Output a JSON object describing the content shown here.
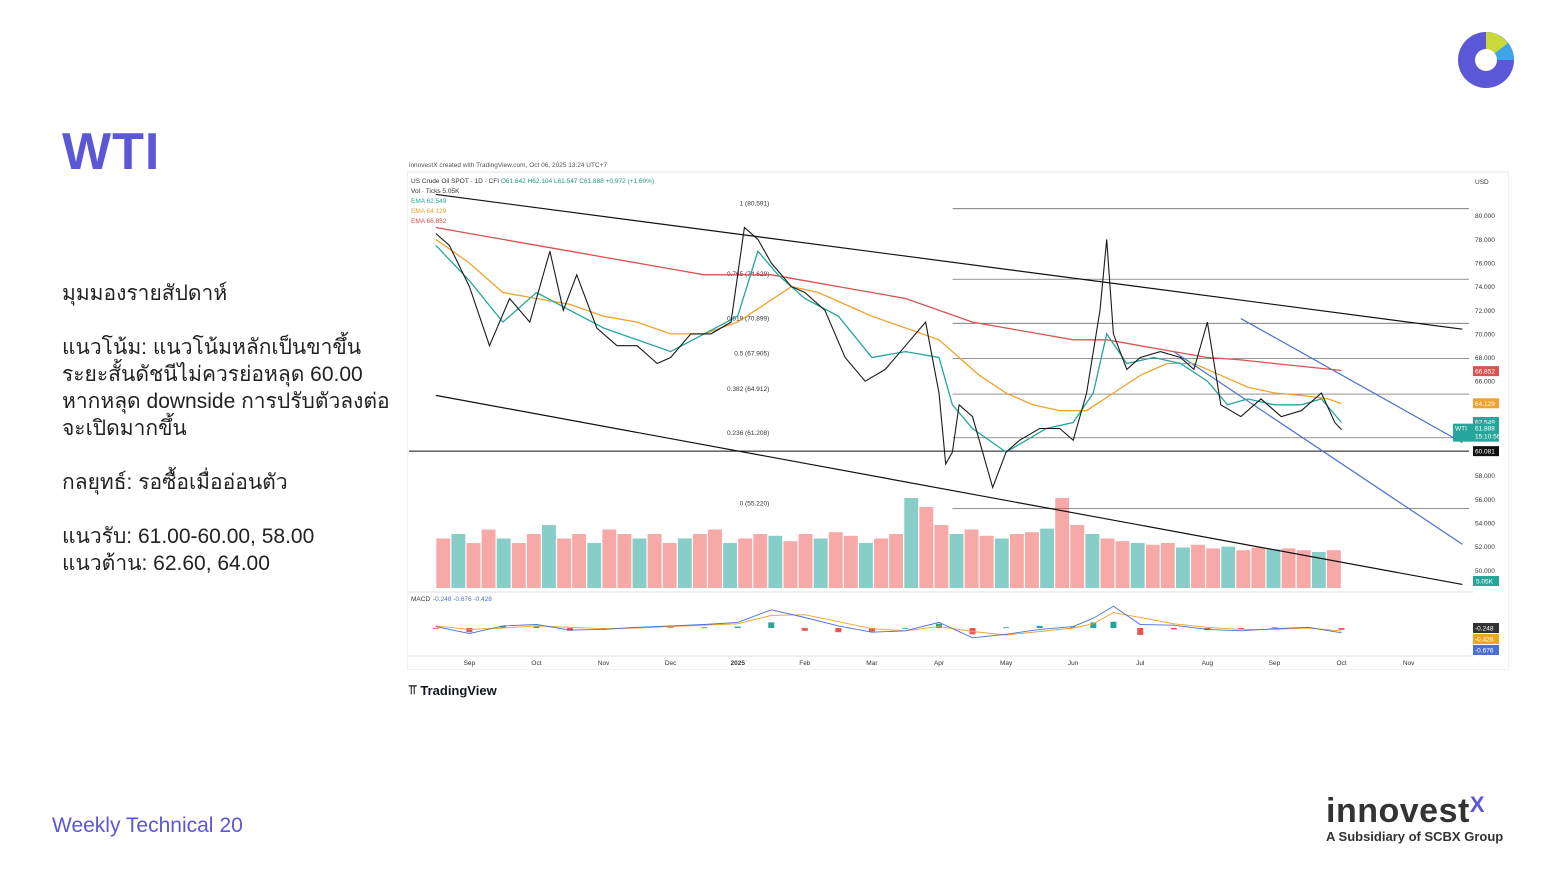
{
  "slide": {
    "title": "WTI",
    "heading": "มุมมองรายสัปดาห์",
    "trend": "แนวโน้ม: แนวโน้มหลักเป็นขาขึ้น ระยะสั้นดัชนีไม่ควรย่อหลุด 60.00 หากหลุด downside การปรับตัวลงต่อจะเปิดมากขึ้น",
    "strategy": "กลยุทธ์: รอซื้อเมื่ออ่อนตัว",
    "support": "แนวรับ: 61.00-60.00, 58.00",
    "resistance": "แนวต้าน: 62.60, 64.00",
    "footer_label": "Weekly Technical",
    "page_number": "20",
    "brand_word": "innovest",
    "brand_x": "X",
    "brand_sub": "A Subsidiary of SCBX Group",
    "tradingview_label": "TradingView",
    "logo_colors": [
      "#5b57d6",
      "#3ea6e8",
      "#c9d83a",
      "#1f2a66"
    ]
  },
  "chart_data": {
    "type": "line",
    "created_by": "innovestX created with TradingView.com, Oct 06, 2025 13:24 UTC+7",
    "symbol": "US Crude Oil SPOT · 1D · CFI",
    "ohlc": "O61.642 H62.104 L61.547 C61.888 +0.972 (+1.60%)",
    "vol_label": "Vol · Ticks 5.05K",
    "ema_labels": [
      {
        "text": "EMA 62.549",
        "color": "#26a69a"
      },
      {
        "text": "EMA 64.129",
        "color": "#f0a22e"
      },
      {
        "text": "EMA 66.852",
        "color": "#d9534f"
      }
    ],
    "currency": "USD",
    "y_ticks": [
      "80.000",
      "78.000",
      "76.000",
      "74.000",
      "72.000",
      "70.000",
      "68.000",
      "66.000",
      "62.549",
      "60.081",
      "58.000",
      "56.000",
      "54.000",
      "52.000",
      "50.000"
    ],
    "ylim": [
      48.5,
      81.5
    ],
    "x_labels": [
      "Sep",
      "Oct",
      "Nov",
      "Dec",
      "2025",
      "Feb",
      "Mar",
      "Apr",
      "May",
      "Jun",
      "Jul",
      "Aug",
      "Sep",
      "Oct",
      "Nov"
    ],
    "x_label_months": [
      0,
      1,
      2,
      3,
      4,
      5,
      6,
      7,
      8,
      9,
      10,
      11,
      12,
      13,
      14
    ],
    "series": [
      {
        "name": "WTI",
        "color": "#1a1a1a",
        "x": [
          -0.5,
          -0.3,
          0,
          0.3,
          0.6,
          0.9,
          1.2,
          1.4,
          1.6,
          1.9,
          2.2,
          2.5,
          2.8,
          3.0,
          3.3,
          3.6,
          3.9,
          4.1,
          4.3,
          4.5,
          4.8,
          5.0,
          5.3,
          5.6,
          5.9,
          6.2,
          6.5,
          6.8,
          7.0,
          7.1,
          7.2,
          7.3,
          7.5,
          7.8,
          8.0,
          8.2,
          8.5,
          8.8,
          9.0,
          9.2,
          9.4,
          9.5,
          9.6,
          9.8,
          10.0,
          10.3,
          10.6,
          10.8,
          11.0,
          11.2,
          11.5,
          11.8,
          12.1,
          12.4,
          12.7,
          12.9,
          13.0
        ],
        "values": [
          78.5,
          77.5,
          74,
          69,
          73,
          71,
          77,
          72,
          75,
          70.5,
          69,
          69,
          67.5,
          68,
          70,
          70,
          71,
          79,
          78,
          76,
          74,
          73.5,
          72,
          68,
          66,
          67,
          69,
          71,
          65,
          59,
          60,
          64,
          63,
          57,
          60,
          61,
          62,
          62,
          61,
          65,
          72,
          78,
          70,
          67,
          68,
          68.5,
          68,
          67,
          71,
          64,
          63,
          64.5,
          63,
          63.5,
          65,
          62.5,
          61.9
        ]
      },
      {
        "name": "EMA 62.549",
        "color": "#26a69a",
        "x": [
          -0.5,
          0,
          0.5,
          1.0,
          1.5,
          2.0,
          2.5,
          3.0,
          3.5,
          4.0,
          4.3,
          4.6,
          5.0,
          5.5,
          6.0,
          6.5,
          7.0,
          7.2,
          7.5,
          8.0,
          8.3,
          8.6,
          9.0,
          9.3,
          9.5,
          9.8,
          10.2,
          10.6,
          11.0,
          11.3,
          11.6,
          12.0,
          12.4,
          12.7,
          13.0
        ],
        "values": [
          77.5,
          74.5,
          71,
          73.5,
          72,
          70.5,
          69.5,
          68.5,
          70,
          71.5,
          77,
          75,
          73,
          71.5,
          68,
          68.5,
          68,
          64,
          62,
          60,
          61,
          62,
          62.5,
          65,
          70,
          67.5,
          68,
          67.5,
          66,
          64,
          64.5,
          64,
          64,
          64.5,
          62.5
        ]
      },
      {
        "name": "EMA 64.129",
        "color": "#f0a22e",
        "x": [
          -0.5,
          0,
          0.5,
          1.0,
          1.5,
          2.0,
          2.5,
          3.0,
          3.5,
          4.0,
          4.4,
          4.8,
          5.2,
          5.6,
          6.0,
          6.5,
          7.0,
          7.3,
          7.6,
          8.0,
          8.4,
          8.8,
          9.2,
          9.6,
          10.0,
          10.4,
          10.8,
          11.2,
          11.6,
          12.0,
          12.4,
          12.8,
          13.0
        ],
        "values": [
          78,
          76,
          73.5,
          73,
          72.5,
          71.5,
          71,
          70,
          70,
          71,
          72.5,
          74,
          73.5,
          72.5,
          71.5,
          70.5,
          69.5,
          68,
          66.5,
          65,
          64,
          63.5,
          63.5,
          65,
          66.5,
          67.5,
          67.5,
          66.5,
          65.5,
          65,
          64.8,
          64.5,
          64.1
        ]
      },
      {
        "name": "EMA 66.852",
        "color": "#d9534f",
        "x": [
          -0.5,
          0,
          0.5,
          1.0,
          1.5,
          2.0,
          2.5,
          3.0,
          3.5,
          4.0,
          4.5,
          5.0,
          5.5,
          6.0,
          6.5,
          7.0,
          7.5,
          8.0,
          8.5,
          9.0,
          9.5,
          10.0,
          10.5,
          11.0,
          11.5,
          12.0,
          12.5,
          13.0
        ],
        "values": [
          79,
          78.5,
          78,
          77.5,
          77,
          76.5,
          76,
          75.5,
          75,
          75,
          75,
          74.5,
          74,
          73.5,
          73,
          72,
          71,
          70.5,
          70,
          69.5,
          69.5,
          69,
          68.5,
          68,
          67.8,
          67.5,
          67.2,
          66.9
        ]
      }
    ],
    "fib_levels": [
      {
        "label": "1 (80.591)",
        "value": 80.591
      },
      {
        "label": "0.765 (74.629)",
        "value": 74.629
      },
      {
        "label": "0.618 (70.899)",
        "value": 70.899
      },
      {
        "label": "0.5 (67.905)",
        "value": 67.905
      },
      {
        "label": "0.382 (64.912)",
        "value": 64.912
      },
      {
        "label": "0.236 (61.208)",
        "value": 61.208
      },
      {
        "label": "0 (55.220)",
        "value": 55.22
      }
    ],
    "support_line": {
      "value": 60.081,
      "label": "60.081"
    },
    "price_tags": [
      {
        "label": "66.852",
        "value": 66.852,
        "color": "#d9534f"
      },
      {
        "label": "64.129",
        "value": 64.129,
        "color": "#f0a22e"
      },
      {
        "label": "62.549",
        "value": 62.549,
        "color": "#26a69a"
      }
    ],
    "wti_tag": {
      "label": "WTI",
      "value": "61.888",
      "timer": "15:10:56",
      "color": "#26a69a"
    },
    "trendlines": [
      {
        "from": [
          -0.5,
          81.8
        ],
        "to": [
          14.8,
          70.4
        ],
        "color": "#111111"
      },
      {
        "from": [
          -0.5,
          64.8
        ],
        "to": [
          14.8,
          48.8
        ],
        "color": "#111111"
      },
      {
        "from": [
          11.5,
          71.3
        ],
        "to": [
          14.8,
          60.8
        ],
        "color": "#4c6fd1"
      },
      {
        "from": [
          10.5,
          68.5
        ],
        "to": [
          14.8,
          52.2
        ],
        "color": "#4c6fd1"
      }
    ],
    "volume": {
      "label": "5.05K",
      "values": [
        0.55,
        0.6,
        0.5,
        0.65,
        0.55,
        0.5,
        0.6,
        0.7,
        0.55,
        0.6,
        0.5,
        0.65,
        0.6,
        0.55,
        0.6,
        0.5,
        0.55,
        0.6,
        0.65,
        0.5,
        0.55,
        0.6,
        0.58,
        0.52,
        0.6,
        0.55,
        0.62,
        0.58,
        0.5,
        0.55,
        0.6,
        1.0,
        0.9,
        0.7,
        0.6,
        0.65,
        0.58,
        0.55,
        0.6,
        0.62,
        0.66,
        1.0,
        0.7,
        0.6,
        0.55,
        0.52,
        0.5,
        0.48,
        0.5,
        0.45,
        0.48,
        0.44,
        0.46,
        0.42,
        0.45,
        0.43,
        0.44,
        0.42,
        0.4,
        0.42
      ]
    },
    "macd": {
      "label": "MACD",
      "values_text": "-0.248 -0.676 -0.428",
      "tags": [
        {
          "label": "-0.248",
          "color": "#333333"
        },
        {
          "label": "-0.428",
          "color": "#f0a22e"
        },
        {
          "label": "-0.676",
          "color": "#4c6fd1"
        }
      ],
      "x": [
        -0.5,
        0,
        0.5,
        1,
        1.5,
        2,
        2.5,
        3,
        3.5,
        4,
        4.5,
        5,
        5.5,
        6,
        6.5,
        7,
        7.5,
        8,
        8.5,
        9,
        9.3,
        9.6,
        10,
        10.5,
        11,
        11.5,
        12,
        12.5,
        13
      ],
      "line": [
        0.2,
        -0.8,
        0.3,
        0.5,
        -0.3,
        -0.2,
        0.1,
        0.3,
        0.5,
        0.8,
        2.6,
        1.5,
        0.3,
        -0.6,
        -0.4,
        0.8,
        -1.4,
        -0.9,
        -0.2,
        0.2,
        1.4,
        3.1,
        0.5,
        0.4,
        -0.2,
        -0.4,
        -0.1,
        0.1,
        -0.68
      ],
      "signal": [
        0.3,
        -0.2,
        0.0,
        0.3,
        0.1,
        -0.1,
        0.0,
        0.2,
        0.4,
        0.6,
        1.8,
        1.9,
        0.9,
        -0.1,
        -0.4,
        0.2,
        -0.5,
        -1.0,
        -0.5,
        0.0,
        0.6,
        2.2,
        1.5,
        0.6,
        0.1,
        -0.2,
        -0.2,
        0.0,
        -0.43
      ],
      "hist": [
        -0.1,
        -0.6,
        0.3,
        0.2,
        -0.4,
        -0.1,
        0.1,
        0.1,
        0.1,
        0.2,
        0.8,
        -0.4,
        -0.6,
        -0.5,
        0.0,
        0.6,
        -0.9,
        0.1,
        0.3,
        0.2,
        0.8,
        0.9,
        -1.0,
        -0.2,
        -0.3,
        -0.2,
        0.1,
        0.1,
        -0.25
      ]
    }
  }
}
